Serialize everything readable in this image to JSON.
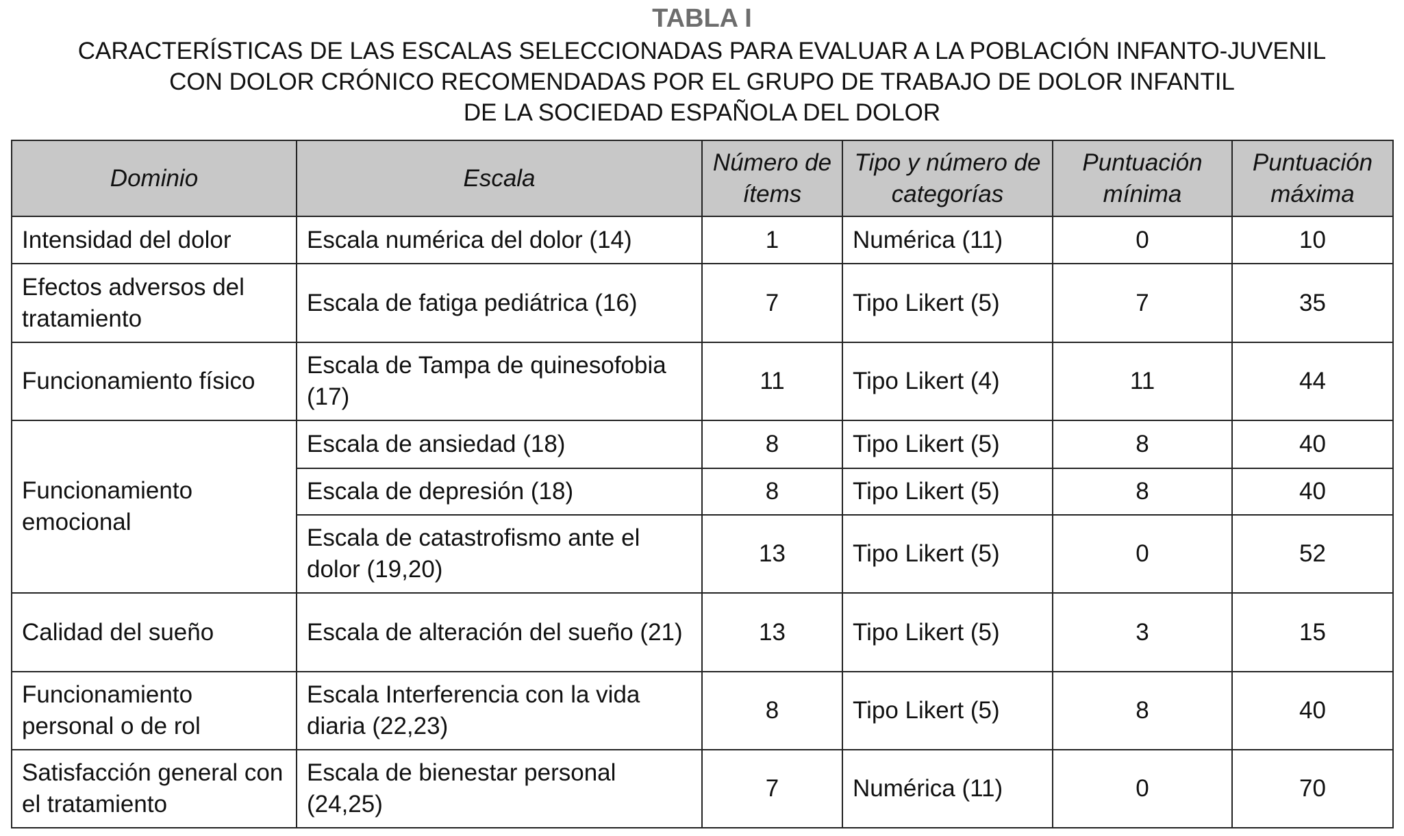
{
  "title": "TABLA I",
  "subtitle": [
    "CARACTERÍSTICAS DE LAS ESCALAS SELECCIONADAS PARA EVALUAR A LA POBLACIÓN INFANTO-JUVENIL",
    "CON DOLOR CRÓNICO RECOMENDADAS POR EL GRUPO DE TRABAJO DE DOLOR INFANTIL",
    "DE LA SOCIEDAD ESPAÑOLA DEL DOLOR"
  ],
  "columns": [
    "Dominio",
    "Escala",
    "Número de ítems",
    "Tipo y número de categorías",
    "Puntuación mínima",
    "Puntuación máxima"
  ],
  "rows": [
    {
      "dominio": "Intensidad del dolor",
      "escala": "Escala numérica del dolor (14)",
      "items": "1",
      "tipo": "Numérica (11)",
      "min": "0",
      "max": "10"
    },
    {
      "dominio": "Efectos adversos del tratamiento",
      "escala": "Escala de fatiga pediátrica (16)",
      "items": "7",
      "tipo": "Tipo Likert (5)",
      "min": "7",
      "max": "35"
    },
    {
      "dominio": "Funcionamiento físico",
      "escala": "Escala de Tampa de quinesofobia (17)",
      "items": "11",
      "tipo": "Tipo Likert (4)",
      "min": "11",
      "max": "44"
    },
    {
      "dominio": "Funcionamiento emocional",
      "escala": "Escala de ansiedad (18)",
      "items": "8",
      "tipo": "Tipo Likert (5)",
      "min": "8",
      "max": "40"
    },
    {
      "dominio": "",
      "escala": "Escala de depresión (18)",
      "items": "8",
      "tipo": "Tipo Likert (5)",
      "min": "8",
      "max": "40"
    },
    {
      "dominio": "",
      "escala": "Escala de catastrofismo ante el dolor (19,20)",
      "items": "13",
      "tipo": "Tipo Likert (5)",
      "min": "0",
      "max": "52"
    },
    {
      "dominio": "Calidad del sueño",
      "escala": "Escala de alteración del sueño (21)",
      "items": "13",
      "tipo": "Tipo Likert (5)",
      "min": "3",
      "max": "15"
    },
    {
      "dominio": "Funcionamiento personal o de rol",
      "escala": "Escala Interferencia con la vida diaria (22,23)",
      "items": "8",
      "tipo": "Tipo Likert (5)",
      "min": "8",
      "max": "40"
    },
    {
      "dominio": "Satisfacción general con el tratamiento",
      "escala": "Escala de bienestar personal (24,25)",
      "items": "7",
      "tipo": "Numérica (11)",
      "min": "0",
      "max": "70"
    }
  ]
}
